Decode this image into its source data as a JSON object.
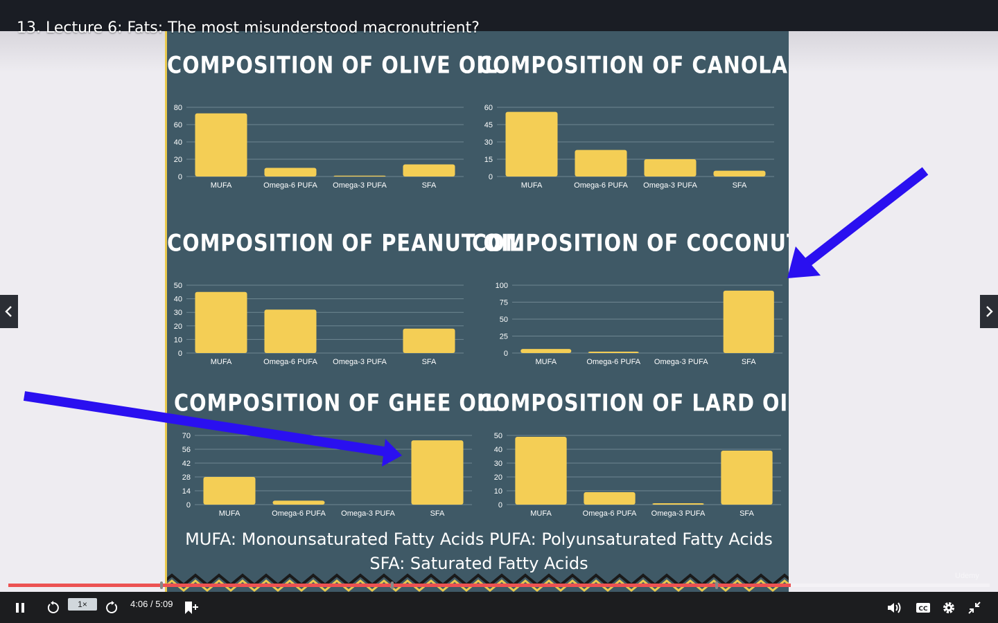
{
  "lecture": {
    "title": "13. Lecture 6: Fats: The most misunderstood macronutrient?"
  },
  "slide": {
    "legend_line1": "MUFA: Monounsaturated Fatty Acids PUFA: Polyunsaturated Fatty Acids",
    "legend_line2": "SFA: Saturated Fatty Acids",
    "bar_color": "#f4ce55",
    "background_color": "#3f5966"
  },
  "chart_data": [
    {
      "type": "bar",
      "title": "COMPOSITION OF OLIVE OIL",
      "categories": [
        "MUFA",
        "Omega-6 PUFA",
        "Omega-3 PUFA",
        "SFA"
      ],
      "values": [
        73,
        10,
        1,
        14
      ],
      "ylim": [
        0,
        80
      ],
      "yticks": [
        "0",
        "20",
        "40",
        "60",
        "80"
      ],
      "grid": true
    },
    {
      "type": "bar",
      "title": "COMPOSITION OF CANOLA OIL",
      "categories": [
        "MUFA",
        "Omega-6 PUFA",
        "Omega-3 PUFA",
        "SFA"
      ],
      "values": [
        56,
        23,
        15,
        5
      ],
      "ylim": [
        0,
        60
      ],
      "yticks": [
        "0",
        "15",
        "30",
        "45",
        "60"
      ],
      "grid": true
    },
    {
      "type": "bar",
      "title": "COMPOSITION OF PEANUT OIL",
      "categories": [
        "MUFA",
        "Omega-6 PUFA",
        "Omega-3 PUFA",
        "SFA"
      ],
      "values": [
        45,
        32,
        0,
        18
      ],
      "ylim": [
        0,
        50
      ],
      "yticks": [
        "0",
        "10",
        "20",
        "30",
        "40",
        "50"
      ],
      "grid": true
    },
    {
      "type": "bar",
      "title": "COMPOSITION OF COCONUT OIL",
      "categories": [
        "MUFA",
        "Omega-6 PUFA",
        "Omega-3 PUFA",
        "SFA"
      ],
      "values": [
        6,
        2,
        0,
        92
      ],
      "ylim": [
        0,
        100
      ],
      "yticks": [
        "0",
        "25",
        "50",
        "75",
        "100"
      ],
      "grid": true
    },
    {
      "type": "bar",
      "title": "COMPOSITION OF GHEE OIL",
      "categories": [
        "MUFA",
        "Omega-6 PUFA",
        "Omega-3 PUFA",
        "SFA"
      ],
      "values": [
        28,
        4,
        0,
        65
      ],
      "ylim": [
        0,
        70
      ],
      "yticks": [
        "0",
        "14",
        "28",
        "42",
        "56",
        "70"
      ],
      "grid": true
    },
    {
      "type": "bar",
      "title": "COMPOSITION OF LARD OIL",
      "categories": [
        "MUFA",
        "Omega-6 PUFA",
        "Omega-3 PUFA",
        "SFA"
      ],
      "values": [
        49,
        9,
        1,
        39
      ],
      "ylim": [
        0,
        50
      ],
      "yticks": [
        "0",
        "10",
        "20",
        "30",
        "40",
        "50"
      ],
      "grid": true
    }
  ],
  "player": {
    "speed_label": "1×",
    "current_time": "4:06",
    "separator": "/",
    "duration": "5:09",
    "progress": 0.797,
    "progress_color": "#ec5252",
    "chapters": [
      0.155,
      0.39,
      0.72
    ],
    "watermark": "Udemy"
  },
  "icons": {
    "pause": "pause-icon",
    "rewind": "rewind-5-icon",
    "forward": "forward-5-icon",
    "bookmark": "add-bookmark-icon",
    "volume": "volume-icon",
    "captions": "captions-icon",
    "settings": "gear-icon",
    "exit_fullscreen": "exit-fullscreen-icon",
    "prev": "chevron-left-icon",
    "next": "chevron-right-icon"
  }
}
